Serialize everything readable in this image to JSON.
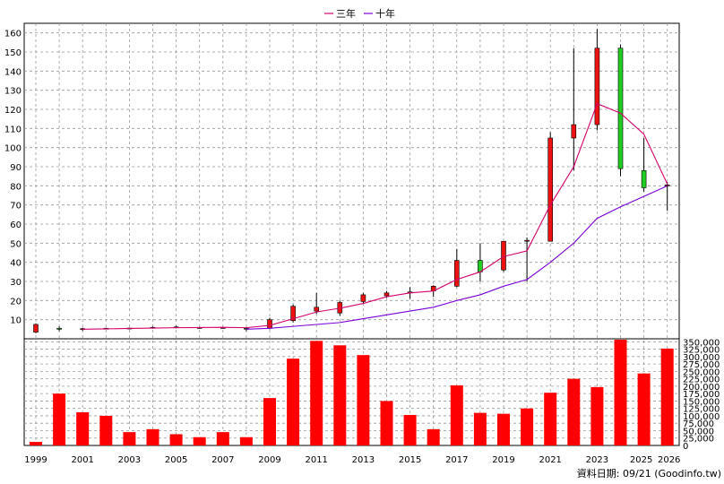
{
  "chart_data": {
    "type": "candlestick_with_volume",
    "legend": [
      {
        "name": "三年",
        "color": "#d6006b"
      },
      {
        "name": "十年",
        "color": "#7b00d6"
      }
    ],
    "price_axis": {
      "ylim": [
        0,
        165
      ],
      "ticks": [
        10,
        20,
        30,
        40,
        50,
        60,
        70,
        80,
        90,
        100,
        110,
        120,
        130,
        140,
        150,
        160
      ]
    },
    "volume_axis": {
      "ylim": [
        0,
        360000
      ],
      "ticks": [
        0,
        25000,
        50000,
        75000,
        100000,
        125000,
        150000,
        175000,
        200000,
        225000,
        250000,
        275000,
        300000,
        325000,
        350000
      ],
      "tick_labels": [
        "0",
        "25,000",
        "50,000",
        "75,000",
        "100,000",
        "125,000",
        "150,000",
        "175,000",
        "200,000",
        "225,000",
        "250,000",
        "275,000",
        "300,000",
        "325,000",
        "350,000"
      ]
    },
    "x_labels": [
      "1999",
      "2001",
      "2003",
      "2005",
      "2007",
      "2009",
      "2011",
      "2013",
      "2015",
      "2017",
      "2019",
      "2021",
      "2023",
      "2025",
      "2026"
    ],
    "candles": [
      {
        "year": 1999,
        "open": 3.5,
        "high": 8,
        "low": 3,
        "close": 7.5
      },
      {
        "year": 2000,
        "open": 5.5,
        "high": 6.5,
        "low": 4,
        "close": 5
      },
      {
        "year": 2001,
        "open": 5,
        "high": 5.8,
        "low": 4.2,
        "close": 5.3
      },
      {
        "year": 2002,
        "open": 5.3,
        "high": 5.8,
        "low": 5,
        "close": 5.5
      },
      {
        "year": 2003,
        "open": 5.4,
        "high": 5.8,
        "low": 5,
        "close": 5.6
      },
      {
        "year": 2004,
        "open": 5.6,
        "high": 6.4,
        "low": 5.3,
        "close": 6
      },
      {
        "year": 2005,
        "open": 6,
        "high": 6.8,
        "low": 5.5,
        "close": 6.2
      },
      {
        "year": 2006,
        "open": 5.8,
        "high": 6.3,
        "low": 5.2,
        "close": 5.9
      },
      {
        "year": 2007,
        "open": 5.8,
        "high": 6.2,
        "low": 5.3,
        "close": 5.9
      },
      {
        "year": 2008,
        "open": 5.5,
        "high": 6,
        "low": 4,
        "close": 5.3
      },
      {
        "year": 2009,
        "open": 5.5,
        "high": 11,
        "low": 5,
        "close": 10
      },
      {
        "year": 2010,
        "open": 9.5,
        "high": 18,
        "low": 8.5,
        "close": 17
      },
      {
        "year": 2011,
        "open": 14.5,
        "high": 24,
        "low": 13,
        "close": 16.5
      },
      {
        "year": 2012,
        "open": 13.5,
        "high": 20,
        "low": 12,
        "close": 19
      },
      {
        "year": 2013,
        "open": 19.5,
        "high": 24,
        "low": 18.5,
        "close": 23
      },
      {
        "year": 2014,
        "open": 22.5,
        "high": 25,
        "low": 21.5,
        "close": 24
      },
      {
        "year": 2015,
        "open": 24,
        "high": 27,
        "low": 21,
        "close": 24.5
      },
      {
        "year": 2016,
        "open": 25,
        "high": 28,
        "low": 22,
        "close": 27.5
      },
      {
        "year": 2017,
        "open": 27.5,
        "high": 47,
        "low": 27,
        "close": 41
      },
      {
        "year": 2018,
        "open": 41,
        "high": 50,
        "low": 30,
        "close": 35
      },
      {
        "year": 2019,
        "open": 36,
        "high": 51,
        "low": 35,
        "close": 51
      },
      {
        "year": 2020,
        "open": 51,
        "high": 53,
        "low": 30,
        "close": 51.5
      },
      {
        "year": 2021,
        "open": 51,
        "high": 108,
        "low": 51,
        "close": 105
      },
      {
        "year": 2022,
        "open": 105,
        "high": 152,
        "low": 88,
        "close": 112
      },
      {
        "year": 2023,
        "open": 112,
        "high": 162,
        "low": 109,
        "close": 152
      },
      {
        "year": 2024,
        "open": 152,
        "high": 154,
        "low": 85,
        "close": 89
      },
      {
        "year": 2025,
        "open": 88,
        "high": 105,
        "low": 77,
        "close": 79
      },
      {
        "year": 2026,
        "open": 80,
        "high": 82,
        "low": 67,
        "close": 80.5
      }
    ],
    "ma_3y": {
      "years": [
        2001,
        2002,
        2003,
        2004,
        2005,
        2006,
        2007,
        2008,
        2009,
        2010,
        2011,
        2012,
        2013,
        2014,
        2015,
        2016,
        2017,
        2018,
        2019,
        2020,
        2021,
        2022,
        2023,
        2024,
        2025,
        2026
      ],
      "values": [
        5,
        5.2,
        5.4,
        5.6,
        5.8,
        5.9,
        6,
        5.8,
        7,
        10.5,
        14,
        16,
        18.5,
        22,
        24,
        25,
        31,
        35,
        43,
        46,
        70,
        90,
        123,
        118,
        107,
        81
      ]
    },
    "ma_10y": {
      "years": [
        2008,
        2009,
        2010,
        2011,
        2012,
        2013,
        2014,
        2015,
        2016,
        2017,
        2018,
        2019,
        2020,
        2021,
        2022,
        2023,
        2024,
        2025,
        2026
      ],
      "values": [
        5,
        5.5,
        6.5,
        7.5,
        8.5,
        10.5,
        12.5,
        14.5,
        16.5,
        20,
        23,
        27.5,
        31,
        40,
        50,
        63,
        69,
        74.5,
        80
      ]
    },
    "volumes": [
      {
        "year": 1999,
        "value": 12000
      },
      {
        "year": 2000,
        "value": 175000
      },
      {
        "year": 2001,
        "value": 112000
      },
      {
        "year": 2002,
        "value": 100000
      },
      {
        "year": 2003,
        "value": 45000
      },
      {
        "year": 2004,
        "value": 55000
      },
      {
        "year": 2005,
        "value": 38000
      },
      {
        "year": 2006,
        "value": 28000
      },
      {
        "year": 2007,
        "value": 45000
      },
      {
        "year": 2008,
        "value": 28000
      },
      {
        "year": 2009,
        "value": 160000
      },
      {
        "year": 2010,
        "value": 293000
      },
      {
        "year": 2011,
        "value": 353000
      },
      {
        "year": 2012,
        "value": 338000
      },
      {
        "year": 2013,
        "value": 305000
      },
      {
        "year": 2014,
        "value": 150000
      },
      {
        "year": 2015,
        "value": 103000
      },
      {
        "year": 2016,
        "value": 55000
      },
      {
        "year": 2017,
        "value": 203000
      },
      {
        "year": 2018,
        "value": 110000
      },
      {
        "year": 2019,
        "value": 107000
      },
      {
        "year": 2020,
        "value": 125000
      },
      {
        "year": 2021,
        "value": 178000
      },
      {
        "year": 2022,
        "value": 225000
      },
      {
        "year": 2023,
        "value": 197000
      },
      {
        "year": 2024,
        "value": 357000
      },
      {
        "year": 2025,
        "value": 243000
      },
      {
        "year": 2026,
        "value": 327000
      }
    ],
    "up_color": "#ee1111",
    "down_color": "#22cc22",
    "volume_color": "#ff0000",
    "source_label": "資料日期: 09/21  (Goodinfo.tw)"
  }
}
